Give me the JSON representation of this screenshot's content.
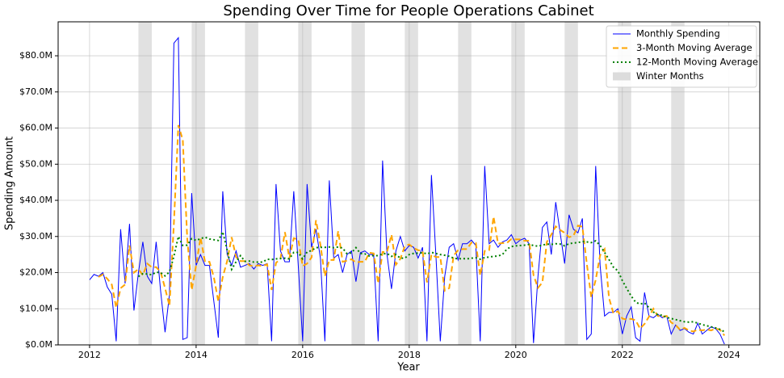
{
  "chart_data": {
    "type": "line",
    "title": "Spending Over Time for People Operations Cabinet",
    "x_label": "Year",
    "y_label": "Spending Amount",
    "xlim": [
      2011.41,
      2024.58
    ],
    "xticks": [
      2012,
      2014,
      2016,
      2018,
      2020,
      2022,
      2024
    ],
    "ylim": [
      0,
      89.4
    ],
    "yticks": [
      {
        "value": 0,
        "label": "$0.0M"
      },
      {
        "value": 10,
        "label": "$10.0M"
      },
      {
        "value": 20,
        "label": "$20.0M"
      },
      {
        "value": 30,
        "label": "$30.0M"
      },
      {
        "value": 40,
        "label": "$40.0M"
      },
      {
        "value": 50,
        "label": "$50.0M"
      },
      {
        "value": 60,
        "label": "$60.0M"
      },
      {
        "value": 70,
        "label": "$70.0M"
      },
      {
        "value": 80,
        "label": "$80.0M"
      }
    ],
    "grid": true,
    "legend": "upper right",
    "x": [
      2012,
      2012.083,
      2012.167,
      2012.25,
      2012.333,
      2012.417,
      2012.5,
      2012.583,
      2012.667,
      2012.75,
      2012.833,
      2012.917,
      2013,
      2013.083,
      2013.167,
      2013.25,
      2013.333,
      2013.417,
      2013.5,
      2013.583,
      2013.667,
      2013.75,
      2013.833,
      2013.917,
      2014,
      2014.083,
      2014.167,
      2014.25,
      2014.333,
      2014.417,
      2014.5,
      2014.583,
      2014.667,
      2014.75,
      2014.833,
      2014.917,
      2015,
      2015.083,
      2015.167,
      2015.25,
      2015.333,
      2015.417,
      2015.5,
      2015.583,
      2015.667,
      2015.75,
      2015.833,
      2015.917,
      2016,
      2016.083,
      2016.167,
      2016.25,
      2016.333,
      2016.417,
      2016.5,
      2016.583,
      2016.667,
      2016.75,
      2016.833,
      2016.917,
      2017,
      2017.083,
      2017.167,
      2017.25,
      2017.333,
      2017.417,
      2017.5,
      2017.583,
      2017.667,
      2017.75,
      2017.833,
      2017.917,
      2018,
      2018.083,
      2018.167,
      2018.25,
      2018.333,
      2018.417,
      2018.5,
      2018.583,
      2018.667,
      2018.75,
      2018.833,
      2018.917,
      2019,
      2019.083,
      2019.167,
      2019.25,
      2019.333,
      2019.417,
      2019.5,
      2019.583,
      2019.667,
      2019.75,
      2019.833,
      2019.917,
      2020,
      2020.083,
      2020.167,
      2020.25,
      2020.333,
      2020.417,
      2020.5,
      2020.583,
      2020.667,
      2020.75,
      2020.833,
      2020.917,
      2021,
      2021.083,
      2021.167,
      2021.25,
      2021.333,
      2021.417,
      2021.5,
      2021.583,
      2021.667,
      2021.75,
      2021.833,
      2021.917,
      2022,
      2022.083,
      2022.167,
      2022.25,
      2022.333,
      2022.417,
      2022.5,
      2022.583,
      2022.667,
      2022.75,
      2022.833,
      2022.917,
      2023,
      2023.083,
      2023.167,
      2023.25,
      2023.333,
      2023.417,
      2023.5,
      2023.583,
      2023.667,
      2023.75,
      2023.833,
      2023.917
    ],
    "series": [
      {
        "name": "Monthly Spending",
        "color": "#0000ff",
        "dash": "solid",
        "width": 1,
        "values": [
          18,
          19.5,
          19,
          20,
          16,
          14,
          1,
          32,
          17,
          33.5,
          9.5,
          20,
          28.5,
          19,
          17,
          28.5,
          15,
          3.5,
          14,
          83.5,
          85,
          1.5,
          2,
          42,
          22,
          25,
          22,
          22,
          12,
          2,
          42.5,
          25,
          22,
          26,
          21.5,
          22,
          22.5,
          21,
          22.5,
          22,
          22.5,
          1,
          44.5,
          26,
          23,
          23,
          42.5,
          22,
          1,
          44.5,
          27,
          32,
          24,
          1,
          45.5,
          24,
          25,
          20,
          25,
          26,
          17.5,
          25.5,
          26,
          25,
          25,
          1,
          51,
          25,
          15.5,
          26,
          30,
          26,
          27.5,
          27,
          24,
          27,
          1,
          47,
          25,
          1,
          19,
          27,
          28,
          23.5,
          28,
          28,
          29,
          27.5,
          1,
          49.5,
          28,
          29,
          27,
          28.5,
          29,
          30.5,
          28,
          29,
          29.5,
          28,
          0.5,
          19,
          32.5,
          34,
          25,
          39.5,
          31,
          22.5,
          36,
          32,
          31,
          35,
          1.5,
          3,
          49.5,
          22,
          8,
          9,
          9,
          10,
          3,
          8,
          10.5,
          2,
          1,
          14.5,
          8,
          7.5,
          8.5,
          7.5,
          8,
          3,
          5.5,
          4,
          4.5,
          3.5,
          3,
          6,
          3,
          4,
          5,
          4.5,
          3,
          0.2
        ]
      },
      {
        "name": "3-Month Moving Average",
        "color": "#ffa500",
        "dash": "dashed",
        "width": 2,
        "values": [
          null,
          null,
          18.8,
          19.5,
          18.3,
          16.7,
          10.3,
          15.7,
          16.7,
          27.5,
          20,
          21,
          19.3,
          22.5,
          21.5,
          21.5,
          20.2,
          15.7,
          10.8,
          33.7,
          60.8,
          56.7,
          29.5,
          15.2,
          22,
          29.7,
          23,
          23,
          18.7,
          12,
          18.8,
          23.2,
          29.8,
          24.3,
          23.2,
          23.2,
          22,
          21.8,
          22,
          21.8,
          22.3,
          15.2,
          22.7,
          23.8,
          31.2,
          24,
          29.5,
          29.2,
          21.8,
          22.5,
          24.2,
          34.5,
          27.7,
          19,
          23.5,
          23.5,
          31.5,
          23,
          23.3,
          23.7,
          22.8,
          23,
          23,
          25.5,
          25.3,
          17,
          25.7,
          25.7,
          30.5,
          22.2,
          23.8,
          27.3,
          27.8,
          26.8,
          26.2,
          26,
          17.3,
          25,
          24.3,
          24.3,
          15,
          15.7,
          24.7,
          26.2,
          26.5,
          26.5,
          28.3,
          28.2,
          19.2,
          26,
          26.2,
          35.5,
          28,
          28.2,
          28.2,
          29.3,
          29.2,
          29.2,
          28.8,
          28.8,
          19.3,
          15.8,
          17.3,
          28.5,
          30.5,
          32.8,
          31.8,
          31,
          29.8,
          30.2,
          33,
          32.7,
          22.5,
          13.2,
          18,
          24.8,
          26.5,
          13,
          8.7,
          9.3,
          7.3,
          7,
          7.2,
          6.8,
          4.5,
          5.8,
          7.8,
          10,
          8,
          7.8,
          8,
          6.2,
          5.5,
          4.2,
          4.7,
          4,
          3.7,
          4.2,
          4,
          4.3,
          4,
          4.5,
          4.2,
          2.6
        ]
      },
      {
        "name": "12-Month Moving Average",
        "color": "#008000",
        "dash": "dotted",
        "width": 2,
        "values": [
          null,
          null,
          null,
          null,
          null,
          null,
          null,
          null,
          null,
          null,
          null,
          18.9,
          19.7,
          19.6,
          19.4,
          20.1,
          20,
          19.1,
          20.2,
          24.5,
          30,
          27.5,
          27.6,
          29.4,
          28.9,
          29.4,
          29.8,
          29.3,
          29.1,
          28.9,
          31.3,
          26.2,
          20.9,
          23,
          24.7,
          23.1,
          23.2,
          22.9,
          22.9,
          22.9,
          23.7,
          23.6,
          23.8,
          23.9,
          24,
          23.8,
          25.6,
          25.6,
          23.8,
          25.7,
          26.1,
          26.9,
          27,
          27,
          27.1,
          26.9,
          27.1,
          26.8,
          25.2,
          25.5,
          26.9,
          25.3,
          25.2,
          24.6,
          24.7,
          24.7,
          25.2,
          25.3,
          24.5,
          25,
          24,
          24,
          25,
          25.3,
          25.4,
          25.5,
          25.2,
          25.6,
          25.3,
          25,
          24.8,
          24.5,
          24,
          23.8,
          23.9,
          23.8,
          24,
          24.1,
          23.7,
          24.2,
          24.3,
          24.5,
          24.6,
          25,
          26.5,
          27.2,
          27.4,
          27.5,
          27.6,
          27.8,
          27.5,
          27.3,
          27.6,
          27.9,
          27.8,
          28,
          27.9,
          27.4,
          28,
          28.2,
          28.3,
          28.6,
          28.5,
          28.3,
          28.8,
          27.5,
          25.6,
          23.6,
          21.5,
          20.5,
          17.8,
          15.6,
          13.5,
          11.8,
          11.3,
          11.6,
          10.3,
          9.1,
          8.3,
          8.2,
          7.6,
          7.3,
          7,
          6.7,
          6.4,
          6.3,
          6.4,
          6,
          5.6,
          5.3,
          5,
          4.7,
          4.3,
          3.6
        ]
      }
    ],
    "shaded_regions": {
      "name": "Winter Months",
      "color": "#dcdcdc",
      "spans": [
        [
          2012.917,
          2013.167
        ],
        [
          2013.917,
          2014.167
        ],
        [
          2014.917,
          2015.167
        ],
        [
          2015.917,
          2016.167
        ],
        [
          2016.917,
          2017.167
        ],
        [
          2017.917,
          2018.167
        ],
        [
          2018.917,
          2019.167
        ],
        [
          2019.917,
          2020.167
        ],
        [
          2020.917,
          2021.167
        ],
        [
          2021.917,
          2022.167
        ],
        [
          2022.917,
          2023.167
        ]
      ]
    }
  }
}
